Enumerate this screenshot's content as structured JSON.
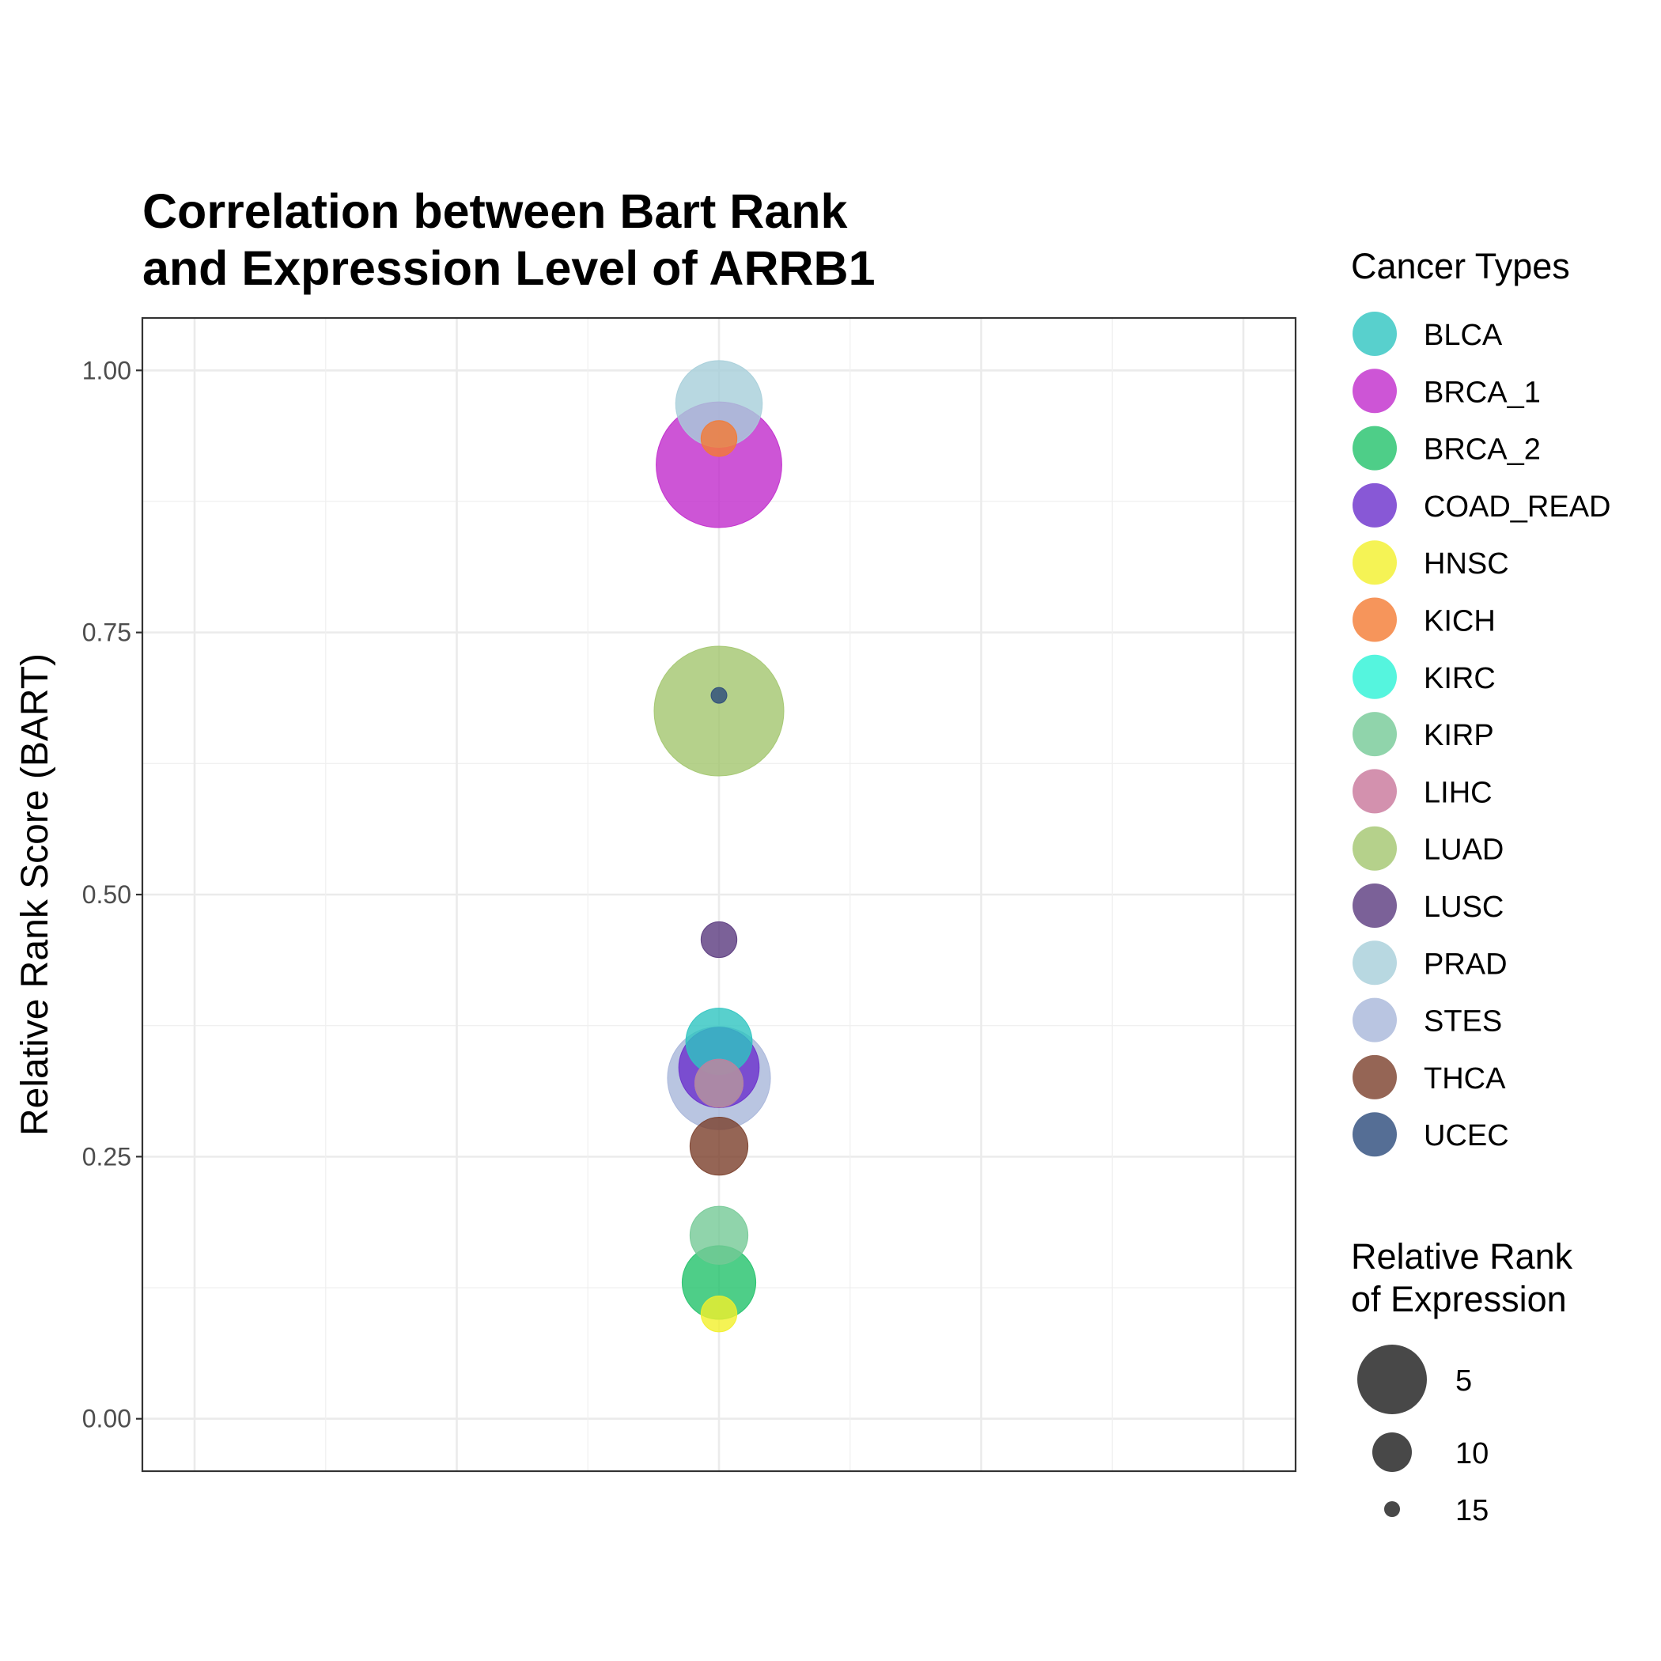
{
  "chart_data": {
    "type": "scatter",
    "title_lines": [
      "Correlation between Bart Rank",
      "and Expression Level of ARRB1"
    ],
    "ylabel": "Relative Rank Score (BART)",
    "xlabel": "",
    "ylim": [
      -0.05,
      1.05
    ],
    "y_ticks": [
      "0.00",
      "0.25",
      "0.50",
      "0.75",
      "1.00"
    ],
    "y_tick_values": [
      0,
      0.25,
      0.5,
      0.75,
      1.0
    ],
    "grid": true,
    "color_legend_title": "Cancer Types",
    "size_legend_title_lines": [
      "Relative Rank",
      "of Expression"
    ],
    "size_legend": [
      {
        "label": "5",
        "value": 5
      },
      {
        "label": "10",
        "value": 10
      },
      {
        "label": "15",
        "value": 15
      }
    ],
    "series": [
      {
        "name": "BLCA",
        "color": "#2EC4C0",
        "x": 0,
        "y": 0.36,
        "rank": 13
      },
      {
        "name": "BRCA_1",
        "color": "#C12ACC",
        "x": 0,
        "y": 0.91,
        "rank": 2
      },
      {
        "name": "BRCA_2",
        "color": "#22C26A",
        "x": 0,
        "y": 0.13,
        "rank": 12
      },
      {
        "name": "COAD_READ",
        "color": "#6A2ECC",
        "x": 0,
        "y": 0.335,
        "rank": 11
      },
      {
        "name": "HNSC",
        "color": "#F2F02A",
        "x": 0,
        "y": 0.1,
        "rank": 16
      },
      {
        "name": "KICH",
        "color": "#F47A32",
        "x": 0,
        "y": 0.935,
        "rank": 16
      },
      {
        "name": "KIRC",
        "color": "#2AF2D6",
        "x": 0,
        "y": 0.32,
        "rank": 15
      },
      {
        "name": "KIRP",
        "color": "#74C996",
        "x": 0,
        "y": 0.175,
        "rank": 14
      },
      {
        "name": "LIHC",
        "color": "#C8769A",
        "x": 0,
        "y": 0.32,
        "rank": 15
      },
      {
        "name": "LUAD",
        "color": "#A2C66E",
        "x": 0,
        "y": 0.675,
        "rank": 1
      },
      {
        "name": "LUSC",
        "color": "#5A3A7E",
        "x": 0,
        "y": 0.457,
        "rank": 16
      },
      {
        "name": "PRAD",
        "color": "#A6CED9",
        "x": 0,
        "y": 0.968,
        "rank": 10
      },
      {
        "name": "STES",
        "color": "#A8B6DA",
        "x": 0,
        "y": 0.325,
        "rank": 7
      },
      {
        "name": "THCA",
        "color": "#7A3E2A",
        "x": 0,
        "y": 0.26,
        "rank": 14
      },
      {
        "name": "UCEC",
        "color": "#2A4A7A",
        "x": 0,
        "y": 0.69,
        "rank": 17
      }
    ]
  }
}
